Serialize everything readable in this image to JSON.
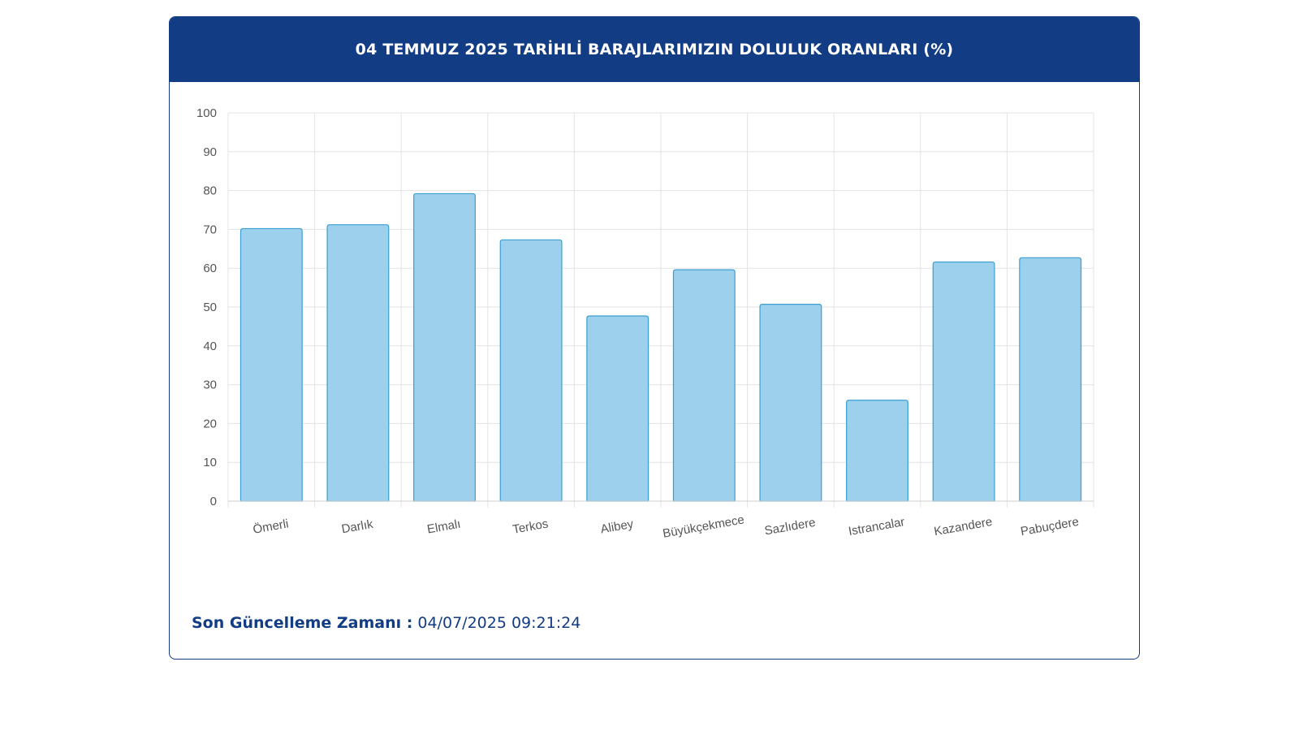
{
  "card": {
    "title": "04 TEMMUZ 2025 TARİHLİ BARAJLARIMIZIN DOLULUK ORANLARI (%)"
  },
  "footer": {
    "label": "Son Güncelleme Zamanı :",
    "value": "04/07/2025 09:21:24"
  },
  "colors": {
    "header_bg": "#123c84",
    "bar_fill": "#9dd0ec",
    "bar_stroke": "#3a9fd0",
    "grid": "#e3e3e3",
    "axis_text": "#555555"
  },
  "chart_data": {
    "type": "bar",
    "title": "",
    "xlabel": "",
    "ylabel": "",
    "ylim": [
      0,
      100
    ],
    "yticks": [
      0,
      10,
      20,
      30,
      40,
      50,
      60,
      70,
      80,
      90,
      100
    ],
    "grid": true,
    "categories": [
      "Ömerli",
      "Darlık",
      "Elmalı",
      "Terkos",
      "Alibey",
      "Büyükçekmece",
      "Sazlıdere",
      "Istrancalar",
      "Kazandere",
      "Pabuçdere"
    ],
    "values": [
      70.2,
      71.2,
      79.2,
      67.3,
      47.7,
      59.6,
      50.7,
      26.0,
      61.6,
      62.7
    ]
  }
}
